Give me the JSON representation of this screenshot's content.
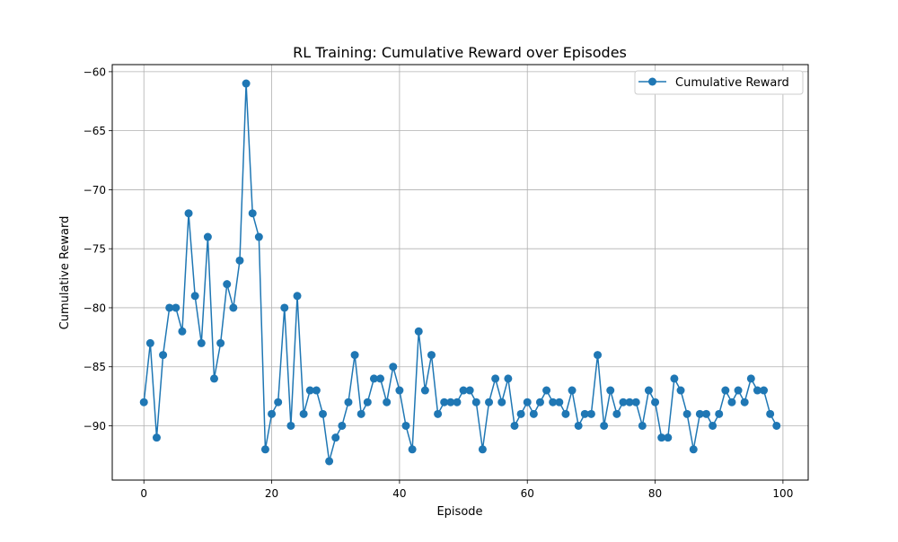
{
  "chart_data": {
    "type": "line",
    "title": "RL Training: Cumulative Reward over Episodes",
    "xlabel": "Episode",
    "ylabel": "Cumulative Reward",
    "xlim": [
      -4.95,
      103.95
    ],
    "ylim": [
      -94.6,
      -59.4
    ],
    "xticks": [
      0,
      20,
      40,
      60,
      80,
      100
    ],
    "yticks": [
      -90,
      -85,
      -80,
      -75,
      -70,
      -65,
      -60
    ],
    "xtick_labels": [
      "0",
      "20",
      "40",
      "60",
      "80",
      "100"
    ],
    "ytick_labels": [
      "−90",
      "−85",
      "−80",
      "−75",
      "−70",
      "−65",
      "−60"
    ],
    "grid": true,
    "legend_position": "top-right",
    "series": [
      {
        "name": "Cumulative Reward",
        "color": "#1f77b4",
        "marker": "circle",
        "x": [
          0,
          1,
          2,
          3,
          4,
          5,
          6,
          7,
          8,
          9,
          10,
          11,
          12,
          13,
          14,
          15,
          16,
          17,
          18,
          19,
          20,
          21,
          22,
          23,
          24,
          25,
          26,
          27,
          28,
          29,
          30,
          31,
          32,
          33,
          34,
          35,
          36,
          37,
          38,
          39,
          40,
          41,
          42,
          43,
          44,
          45,
          46,
          47,
          48,
          49,
          50,
          51,
          52,
          53,
          54,
          55,
          56,
          57,
          58,
          59,
          60,
          61,
          62,
          63,
          64,
          65,
          66,
          67,
          68,
          69,
          70,
          71,
          72,
          73,
          74,
          75,
          76,
          77,
          78,
          79,
          80,
          81,
          82,
          83,
          84,
          85,
          86,
          87,
          88,
          89,
          90,
          91,
          92,
          93,
          94,
          95,
          96,
          97,
          98,
          99
        ],
        "values": [
          -88,
          -83,
          -91,
          -84,
          -80,
          -80,
          -82,
          -72,
          -79,
          -83,
          -74,
          -86,
          -83,
          -78,
          -80,
          -76,
          -61,
          -72,
          -74,
          -92,
          -89,
          -88,
          -80,
          -90,
          -79,
          -89,
          -87,
          -87,
          -89,
          -93,
          -91,
          -90,
          -88,
          -84,
          -89,
          -88,
          -86,
          -86,
          -88,
          -85,
          -87,
          -90,
          -92,
          -82,
          -87,
          -84,
          -89,
          -88,
          -88,
          -88,
          -87,
          -87,
          -88,
          -92,
          -88,
          -86,
          -88,
          -86,
          -90,
          -89,
          -88,
          -89,
          -88,
          -87,
          -88,
          -88,
          -89,
          -87,
          -90,
          -89,
          -89,
          -84,
          -90,
          -87,
          -89,
          -88,
          -88,
          -88,
          -90,
          -87,
          -88,
          -91,
          -91,
          -86,
          -87,
          -89,
          -92,
          -89,
          -89,
          -90,
          -89,
          -87,
          -88,
          -87,
          -88,
          -86,
          -87,
          -87,
          -89,
          -90
        ]
      }
    ]
  }
}
